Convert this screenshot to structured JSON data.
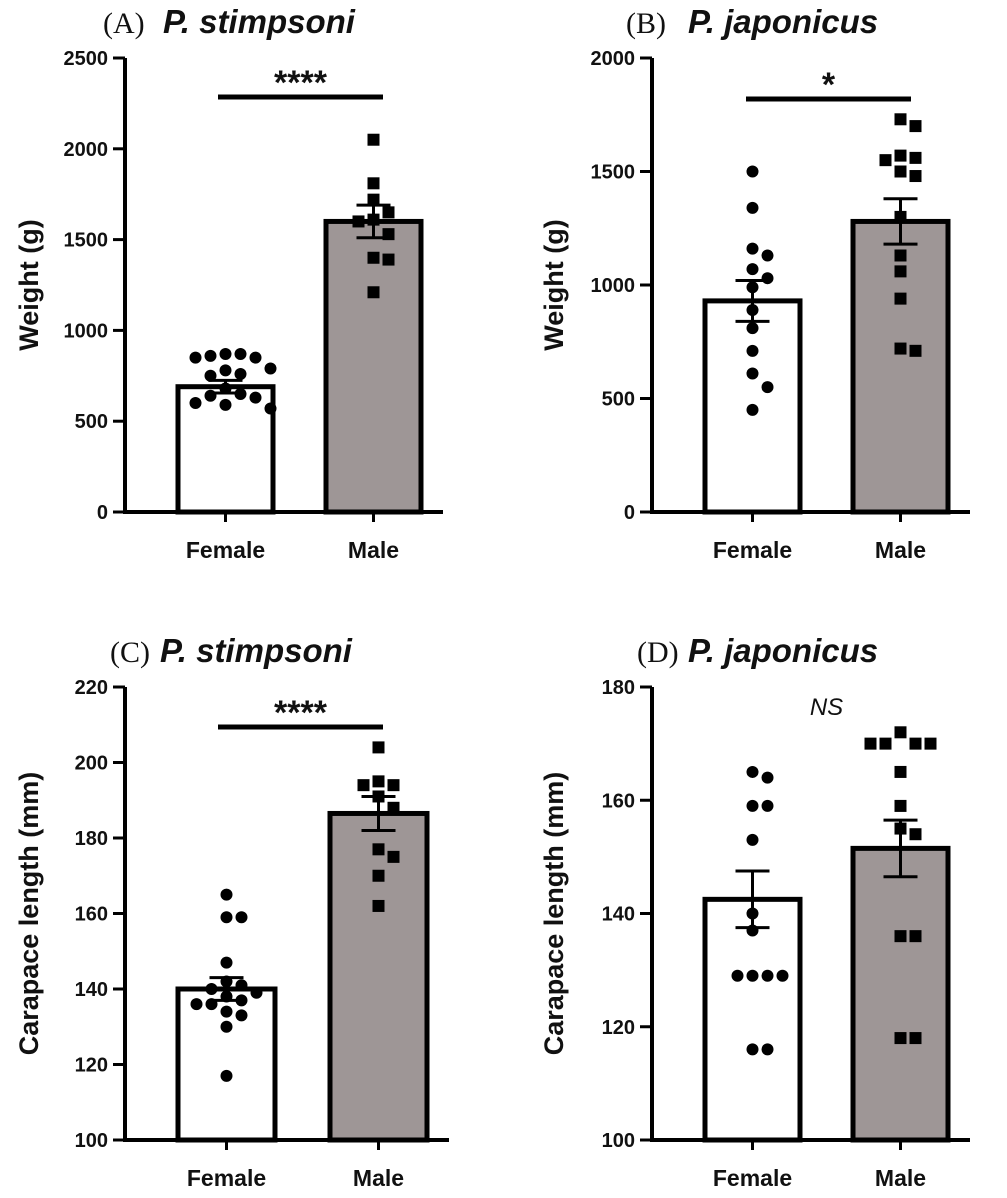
{
  "chart_data": [
    {
      "type": "bar",
      "panel_letter": "(A)",
      "species": "P. stimpsoni",
      "ylabel": "Weight (g)",
      "ylim": [
        0,
        2500
      ],
      "yticks": [
        "0",
        "500",
        "1000",
        "1500",
        "2000",
        "2500"
      ],
      "categories": [
        "Female",
        "Male"
      ],
      "means": [
        690,
        1600
      ],
      "sem": [
        35,
        90
      ],
      "significance": "****",
      "points": [
        [
          870,
          870,
          860,
          850,
          850,
          790,
          780,
          760,
          750,
          680,
          650,
          640,
          630,
          600,
          590,
          570
        ],
        [
          2050,
          1810,
          1720,
          1650,
          1610,
          1600,
          1530,
          1400,
          1390,
          1210
        ]
      ]
    },
    {
      "type": "bar",
      "panel_letter": "(B)",
      "species": "P. japonicus",
      "ylabel": "Weight (g)",
      "ylim": [
        0,
        2000
      ],
      "yticks": [
        "0",
        "500",
        "1000",
        "1500",
        "2000"
      ],
      "categories": [
        "Female",
        "Male"
      ],
      "means": [
        930,
        1280
      ],
      "sem": [
        90,
        100
      ],
      "significance": "*",
      "points": [
        [
          1500,
          1340,
          1160,
          1130,
          1070,
          1030,
          990,
          890,
          810,
          710,
          610,
          550,
          450
        ],
        [
          1730,
          1700,
          1570,
          1560,
          1550,
          1500,
          1480,
          1300,
          1130,
          1060,
          940,
          720,
          710
        ]
      ]
    },
    {
      "type": "bar",
      "panel_letter": "(C)",
      "species": "P. stimpsoni",
      "ylabel": "Carapace length (mm)",
      "ylim": [
        100,
        220
      ],
      "yticks": [
        "100",
        "120",
        "140",
        "160",
        "180",
        "200",
        "220"
      ],
      "categories": [
        "Female",
        "Male"
      ],
      "means": [
        140,
        186.5
      ],
      "sem": [
        3,
        4.5
      ],
      "significance": "****",
      "points": [
        [
          165,
          159,
          159,
          147,
          142,
          141,
          140,
          139,
          138,
          137,
          136,
          136,
          134,
          133,
          130,
          117
        ],
        [
          204,
          195,
          194,
          194,
          191,
          188,
          177,
          175,
          170,
          162
        ]
      ]
    },
    {
      "type": "bar",
      "panel_letter": "(D)",
      "species": "P. japonicus",
      "ylabel": "Carapace length (mm)",
      "ylim": [
        100,
        180
      ],
      "yticks": [
        "100",
        "120",
        "140",
        "160",
        "180"
      ],
      "categories": [
        "Female",
        "Male"
      ],
      "means": [
        142.5,
        151.5
      ],
      "sem": [
        5,
        5
      ],
      "significance": "NS",
      "points": [
        [
          165,
          164,
          159,
          159,
          153,
          140,
          137,
          129,
          129,
          129,
          129,
          116,
          116
        ],
        [
          172,
          170,
          170,
          170,
          170,
          165,
          159,
          155,
          154,
          136,
          136,
          118,
          118
        ]
      ]
    }
  ]
}
